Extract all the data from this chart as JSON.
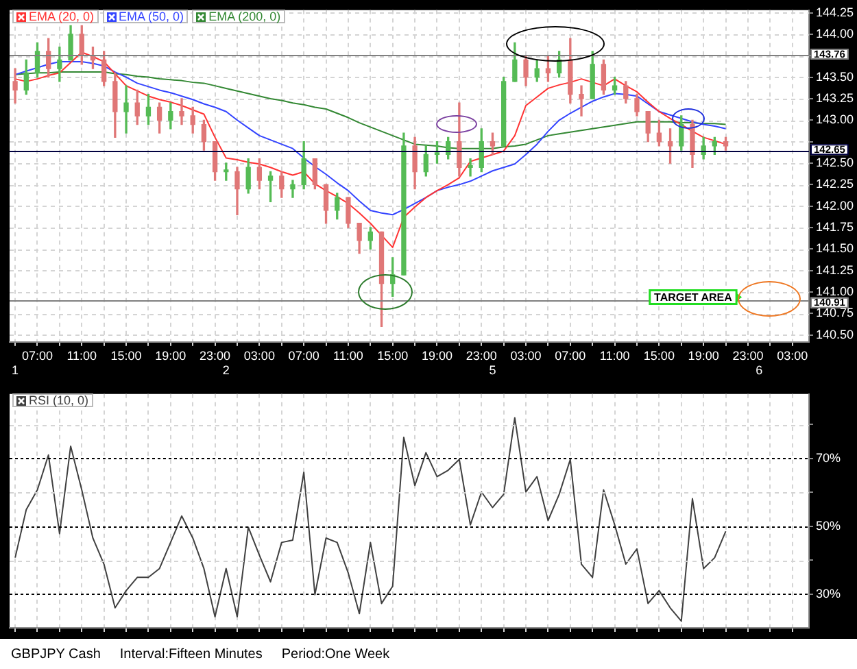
{
  "chart_data": [
    {
      "type": "candlestick",
      "categories": [
        "1",
        null,
        "07:00",
        null,
        null,
        null,
        "11:00",
        null,
        null,
        null,
        "15:00",
        null,
        null,
        null,
        "19:00",
        null,
        null,
        null,
        "23:00",
        "2",
        null,
        null,
        "03:00",
        null,
        null,
        null,
        "07:00",
        null,
        null,
        null,
        "11:00",
        null,
        null,
        null,
        "15:00",
        null,
        null,
        null,
        "19:00",
        null,
        null,
        null,
        "23:00",
        "5",
        null,
        null,
        "03:00",
        null,
        null,
        null,
        "07:00",
        null,
        null,
        null,
        "11:00",
        null,
        null,
        null,
        "15:00",
        null,
        null,
        null,
        "19:00",
        null,
        null,
        null,
        "23:00",
        "6",
        null,
        null,
        "03:00",
        null
      ],
      "ohlc": [
        [
          143.45,
          143.6,
          143.2,
          143.35
        ],
        [
          143.35,
          143.7,
          143.3,
          143.55
        ],
        [
          143.55,
          143.9,
          143.5,
          143.8
        ],
        [
          143.8,
          143.95,
          143.5,
          143.6
        ],
        [
          143.6,
          143.85,
          143.45,
          143.7
        ],
        [
          143.7,
          144.1,
          143.7,
          144.0
        ],
        [
          144.0,
          144.1,
          143.65,
          143.75
        ],
        [
          143.75,
          143.85,
          143.6,
          143.7
        ],
        [
          143.7,
          143.8,
          143.4,
          143.45
        ],
        [
          143.45,
          143.55,
          142.8,
          143.1
        ],
        [
          143.1,
          143.4,
          142.85,
          143.2
        ],
        [
          143.2,
          143.35,
          142.95,
          143.05
        ],
        [
          143.05,
          143.3,
          142.95,
          143.15
        ],
        [
          143.15,
          143.2,
          142.85,
          143.0
        ],
        [
          143.0,
          143.2,
          142.9,
          143.1
        ],
        [
          143.1,
          143.25,
          142.95,
          143.05
        ],
        [
          143.05,
          143.15,
          142.85,
          142.95
        ],
        [
          142.95,
          143.0,
          142.65,
          142.75
        ],
        [
          142.75,
          142.75,
          142.3,
          142.4
        ],
        [
          142.4,
          142.5,
          142.3,
          142.42
        ],
        [
          142.4,
          142.45,
          141.9,
          142.2
        ],
        [
          142.2,
          142.55,
          142.15,
          142.45
        ],
        [
          142.45,
          142.55,
          142.2,
          142.3
        ],
        [
          142.3,
          142.4,
          142.05,
          142.35
        ],
        [
          142.35,
          142.4,
          142.1,
          142.2
        ],
        [
          142.2,
          142.3,
          142.1,
          142.25
        ],
        [
          142.25,
          142.75,
          142.2,
          142.55
        ],
        [
          142.55,
          142.55,
          142.2,
          142.25
        ],
        [
          142.25,
          142.25,
          141.8,
          141.95
        ],
        [
          141.95,
          142.15,
          141.85,
          142.1
        ],
        [
          142.1,
          142.1,
          141.75,
          141.8
        ],
        [
          141.8,
          141.8,
          141.45,
          141.6
        ],
        [
          141.6,
          141.75,
          141.5,
          141.7
        ],
        [
          141.7,
          141.7,
          140.6,
          141.1
        ],
        [
          141.1,
          141.4,
          140.95,
          141.2
        ],
        [
          141.2,
          142.85,
          141.2,
          142.7
        ],
        [
          142.7,
          142.8,
          142.2,
          142.4
        ],
        [
          142.4,
          142.7,
          142.35,
          142.6
        ],
        [
          142.6,
          142.75,
          142.5,
          142.62
        ],
        [
          142.6,
          142.8,
          142.55,
          142.75
        ],
        [
          142.75,
          143.2,
          142.35,
          142.45
        ],
        [
          142.45,
          142.55,
          142.35,
          142.47
        ],
        [
          142.45,
          142.9,
          142.4,
          142.75
        ],
        [
          142.75,
          142.85,
          142.6,
          142.7
        ],
        [
          142.7,
          143.5,
          142.7,
          143.45
        ],
        [
          143.45,
          143.9,
          143.45,
          143.7
        ],
        [
          143.7,
          143.75,
          143.4,
          143.5
        ],
        [
          143.5,
          143.7,
          143.45,
          143.6
        ],
        [
          143.6,
          143.75,
          143.45,
          143.55
        ],
        [
          143.55,
          143.8,
          143.5,
          143.7
        ],
        [
          143.7,
          143.95,
          143.2,
          143.3
        ],
        [
          143.3,
          143.4,
          143.05,
          143.25
        ],
        [
          143.25,
          143.8,
          143.25,
          143.65
        ],
        [
          143.65,
          143.7,
          143.3,
          143.35
        ],
        [
          143.35,
          143.5,
          143.3,
          143.4
        ],
        [
          143.4,
          143.45,
          143.2,
          143.25
        ],
        [
          143.25,
          143.3,
          143.05,
          143.1
        ],
        [
          143.1,
          143.1,
          142.75,
          142.85
        ],
        [
          142.85,
          143.0,
          142.7,
          142.75
        ],
        [
          142.75,
          142.9,
          142.5,
          142.7
        ],
        [
          142.7,
          143.05,
          142.65,
          142.95
        ],
        [
          142.95,
          143.0,
          142.45,
          142.6
        ],
        [
          142.6,
          142.8,
          142.55,
          142.7
        ],
        [
          142.7,
          142.8,
          142.6,
          142.75
        ],
        [
          142.75,
          142.8,
          142.65,
          142.7
        ],
        null,
        null,
        null,
        null,
        null,
        null,
        null
      ],
      "colors": [
        "#e07777",
        "#55bb55",
        "#55bb55",
        "#e07777",
        "#55bb55",
        "#55bb55",
        "#e07777",
        "#e07777",
        "#e07777",
        "#e07777",
        "#55bb55",
        "#e07777",
        "#55bb55",
        "#e07777",
        "#55bb55",
        "#e07777",
        "#e07777",
        "#e07777",
        "#e07777",
        "#55bb55",
        "#e07777",
        "#55bb55",
        "#e07777",
        "#55bb55",
        "#e07777",
        "#55bb55",
        "#55bb55",
        "#e07777",
        "#e07777",
        "#55bb55",
        "#e07777",
        "#e07777",
        "#55bb55",
        "#e07777",
        "#55bb55",
        "#55bb55",
        "#e07777",
        "#55bb55",
        "#55bb55",
        "#55bb55",
        "#e07777",
        "#55bb55",
        "#55bb55",
        "#e07777",
        "#55bb55",
        "#55bb55",
        "#e07777",
        "#55bb55",
        "#e07777",
        "#55bb55",
        "#e07777",
        "#e07777",
        "#55bb55",
        "#e07777",
        "#55bb55",
        "#e07777",
        "#e07777",
        "#e07777",
        "#e07777",
        "#e07777",
        "#55bb55",
        "#e07777",
        "#55bb55",
        "#55bb55",
        "#e07777",
        null,
        null,
        null,
        null,
        null,
        null,
        null
      ],
      "series": [
        {
          "type": "line",
          "name": "EMA (20, 0)",
          "color": "#ff3333",
          "values": [
            143.48,
            143.45,
            143.48,
            143.52,
            143.55,
            143.67,
            143.79,
            143.74,
            143.68,
            143.54,
            143.4,
            143.34,
            143.28,
            143.24,
            143.21,
            143.17,
            143.12,
            143.07,
            142.8,
            142.56,
            142.54,
            142.51,
            142.49,
            142.45,
            142.4,
            142.36,
            142.4,
            142.26,
            142.18,
            142.11,
            142.03,
            141.92,
            141.8,
            141.66,
            141.52,
            141.87,
            141.99,
            142.1,
            142.18,
            142.25,
            142.33,
            142.52,
            142.56,
            142.6,
            142.64,
            142.82,
            143.17,
            143.27,
            143.37,
            143.41,
            143.44,
            143.48,
            143.44,
            143.4,
            143.48,
            143.4,
            143.33,
            143.21,
            143.1,
            143.02,
            142.95,
            142.87,
            142.8,
            142.76,
            142.72,
            null,
            null,
            null,
            null,
            null,
            null,
            null
          ]
        },
        {
          "type": "line",
          "name": "EMA (50, 0)",
          "color": "#3344ff",
          "values": [
            143.53,
            143.57,
            143.61,
            143.65,
            143.68,
            143.68,
            143.68,
            143.66,
            143.63,
            143.56,
            143.5,
            143.43,
            143.39,
            143.35,
            143.32,
            143.28,
            143.24,
            143.19,
            143.15,
            143.1,
            143.0,
            142.91,
            142.82,
            142.77,
            142.72,
            142.67,
            142.56,
            142.46,
            142.37,
            142.27,
            142.18,
            142.06,
            141.95,
            141.92,
            141.9,
            141.96,
            142.03,
            142.1,
            142.18,
            142.22,
            142.25,
            142.29,
            142.35,
            142.41,
            142.45,
            142.49,
            142.6,
            142.72,
            142.87,
            143.0,
            143.08,
            143.15,
            143.22,
            143.27,
            143.31,
            143.3,
            143.28,
            143.19,
            143.1,
            143.06,
            143.02,
            142.98,
            142.95,
            142.93,
            142.9,
            null,
            null,
            null,
            null,
            null,
            null,
            null
          ]
        },
        {
          "type": "line",
          "name": "EMA (200, 0)",
          "color": "#338833",
          "values": [
            143.53,
            143.54,
            143.55,
            143.55,
            143.56,
            143.56,
            143.56,
            143.56,
            143.56,
            143.54,
            143.53,
            143.51,
            143.5,
            143.48,
            143.47,
            143.46,
            143.44,
            143.43,
            143.4,
            143.37,
            143.34,
            143.31,
            143.28,
            143.25,
            143.23,
            143.2,
            143.18,
            143.15,
            143.13,
            143.08,
            143.03,
            142.97,
            142.92,
            142.87,
            142.82,
            142.77,
            142.72,
            142.71,
            142.7,
            142.68,
            142.67,
            142.67,
            142.67,
            142.67,
            142.69,
            142.7,
            142.72,
            142.77,
            142.82,
            142.84,
            142.86,
            142.88,
            142.9,
            142.92,
            142.94,
            142.96,
            142.98,
            142.98,
            142.98,
            142.98,
            142.97,
            142.97,
            142.96,
            142.96,
            142.95,
            null,
            null,
            null,
            null,
            null,
            null,
            null
          ]
        }
      ],
      "ylim": [
        140.42,
        144.28
      ],
      "yticks": [
        {
          "value": 140.5,
          "label": "140.50"
        },
        {
          "value": 140.75,
          "label": "140.75"
        },
        {
          "value": 141,
          "label": "141.00"
        },
        {
          "value": 141.25,
          "label": "141.25"
        },
        {
          "value": 141.5,
          "label": "141.50"
        },
        {
          "value": 141.75,
          "label": "141.75"
        },
        {
          "value": 142,
          "label": "142.00"
        },
        {
          "value": 142.25,
          "label": "142.25"
        },
        {
          "value": 142.5,
          "label": "142.50"
        },
        {
          "value": 142.75,
          "label": null
        },
        {
          "value": 143,
          "label": "143.00"
        },
        {
          "value": 143.25,
          "label": "143.25"
        },
        {
          "value": 143.5,
          "label": "143.50"
        },
        {
          "value": 143.75,
          "label": null
        },
        {
          "value": 144,
          "label": "144.00"
        },
        {
          "value": 144.25,
          "label": "144.25"
        }
      ],
      "ref_lines": [
        {
          "axis": "y",
          "value": 143.76,
          "label": "143.76",
          "color": "#808080"
        },
        {
          "axis": "y",
          "value": 142.65,
          "label": "142.65",
          "color": "#000040"
        },
        {
          "axis": "y",
          "value": 140.91,
          "label": "140.91",
          "color": "#808080"
        }
      ],
      "annotations": [
        {
          "text": "TARGET AREA",
          "y": 140.94
        }
      ],
      "grid": true,
      "legend": "top left"
    },
    {
      "type": "line",
      "categories": [
        null,
        null,
        null,
        null,
        null,
        null,
        null,
        null,
        null,
        null,
        null,
        null,
        null,
        null,
        null,
        null,
        null,
        null,
        null,
        null,
        null,
        null,
        null,
        null,
        null,
        null,
        null,
        null,
        null,
        null,
        null,
        null,
        null,
        null,
        null,
        null,
        null,
        null,
        null,
        null,
        null,
        null,
        null,
        null,
        null,
        null,
        null,
        null,
        null,
        null,
        null,
        null,
        null,
        null,
        null,
        null,
        null,
        null,
        null,
        null,
        null,
        null,
        null,
        null,
        null,
        null,
        null,
        null,
        null,
        null,
        null,
        null
      ],
      "series": [
        {
          "name": "RSI (10, 0)",
          "color": "#404040",
          "values": [
            40.7,
            54.9,
            60.7,
            71,
            47.8,
            73.6,
            60.7,
            46.5,
            38.8,
            25.9,
            31,
            34.9,
            34.9,
            37.5,
            45.2,
            53,
            46.5,
            37.5,
            23.3,
            37.5,
            23.3,
            49.7,
            41.4,
            33.6,
            45.2,
            45.9,
            65.9,
            29.8,
            46.5,
            45.2,
            36.2,
            24.2,
            45.2,
            27.2,
            32.3,
            76.2,
            62,
            71.7,
            64.6,
            66.5,
            69.7,
            50.4,
            60.1,
            55.5,
            59.4,
            82,
            60.1,
            64.6,
            51.7,
            59.4,
            69.7,
            38.8,
            34.9,
            60.7,
            50.4,
            38.8,
            43.3,
            27.2,
            31,
            25.9,
            22,
            58.1,
            37.5,
            40.7,
            48.5,
            null,
            null,
            null,
            null,
            null,
            null,
            null
          ]
        }
      ],
      "ylim": [
        20,
        89
      ],
      "yticks": [
        {
          "value": 30,
          "label": "30%"
        },
        {
          "value": 40,
          "label": null
        },
        {
          "value": 50,
          "label": "50%"
        },
        {
          "value": 60,
          "label": null
        },
        {
          "value": 70,
          "label": "70%"
        },
        {
          "value": 80,
          "label": null
        }
      ],
      "ref_lines": [
        {
          "axis": "y",
          "value": 30,
          "color": "#000000",
          "line_style": "dotted"
        },
        {
          "axis": "y",
          "value": 50,
          "color": "#000000",
          "line_style": "dotted"
        },
        {
          "axis": "y",
          "value": 70,
          "color": "#000000",
          "line_style": "dotted"
        },
        {
          "axis": "y",
          "value": 40,
          "color": "#d4d4d4",
          "line_style": "dashed"
        },
        {
          "axis": "y",
          "value": 60,
          "color": "#d4d4d4",
          "line_style": "dashed"
        },
        {
          "axis": "y",
          "value": 80,
          "color": "#d4d4d4",
          "line_style": "dashed"
        }
      ],
      "annotations": [
        "GBPJPY Cash",
        "Interval:Fifteen Minutes",
        "Period:One Week"
      ],
      "tick_labels": "y",
      "grid": "x",
      "legend": "top left"
    }
  ]
}
